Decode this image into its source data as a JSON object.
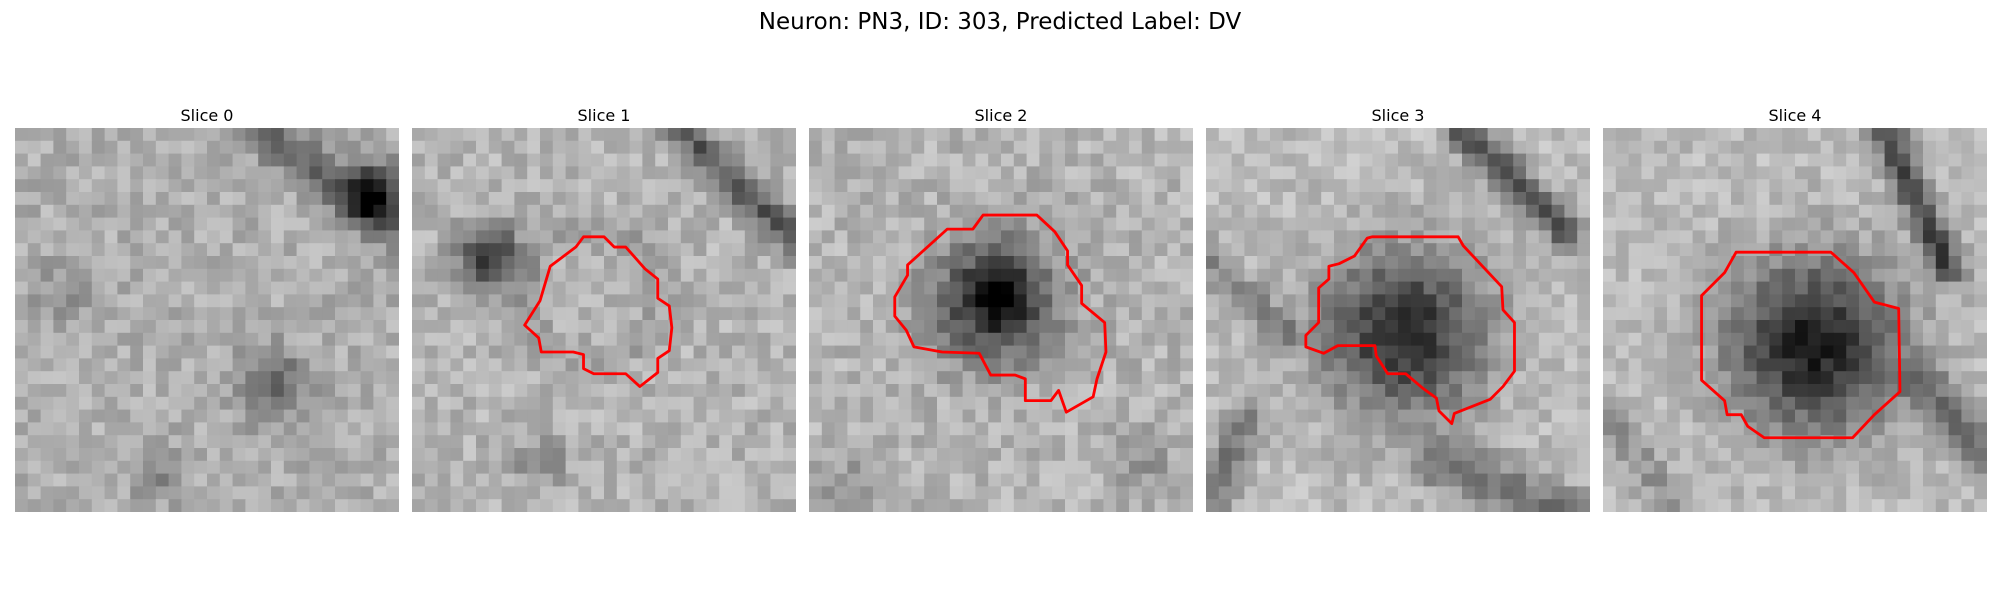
{
  "figure": {
    "title": "Neuron: PN3, ID: 303, Predicted Label: DV"
  },
  "panels": [
    {
      "title": "Slice 0",
      "contour": false
    },
    {
      "title": "Slice 1",
      "contour": true
    },
    {
      "title": "Slice 2",
      "contour": true
    },
    {
      "title": "Slice 3",
      "contour": true
    },
    {
      "title": "Slice 4",
      "contour": true
    }
  ],
  "colors": {
    "contour": "#ff0000",
    "background": "#ffffff"
  }
}
